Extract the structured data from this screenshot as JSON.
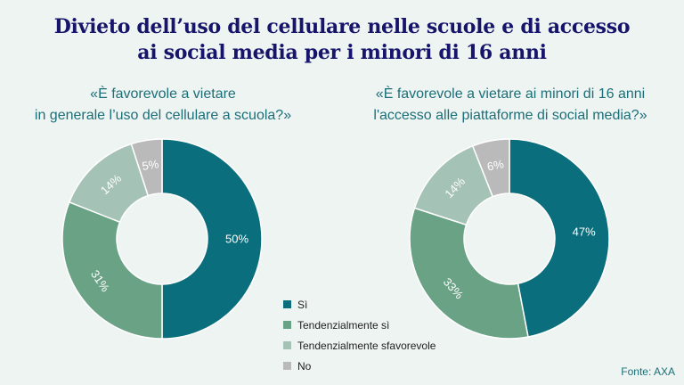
{
  "title": {
    "line1": "Divieto dell’uso del cellulare nelle scuole e di accesso",
    "line2": "ai social media per i minori di 16 anni"
  },
  "legend": [
    {
      "label": "Sì",
      "color": "#0b6e7c"
    },
    {
      "label": "Tendenzialmente sì",
      "color": "#6aa285"
    },
    {
      "label": "Tendenzialmente sfavorevole",
      "color": "#a5c2b6"
    },
    {
      "label": "No",
      "color": "#b9bab9"
    }
  ],
  "source": "Fonte: AXA",
  "chart_data": [
    {
      "type": "pie",
      "donut": true,
      "title_lines": [
        "«È favorevole a vietare",
        "in generale l’uso del cellulare a scuola?»"
      ],
      "categories": [
        "Sì",
        "Tendenzialmente sì",
        "Tendenzialmente sfavorevole",
        "No"
      ],
      "values": [
        50,
        31,
        14,
        5
      ],
      "labels": [
        "50%",
        "31%",
        "14%",
        "5%"
      ]
    },
    {
      "type": "pie",
      "donut": true,
      "title_lines": [
        "«È favorevole a vietare ai minori di 16 anni",
        "l'accesso alle piattaforme di social media?»"
      ],
      "categories": [
        "Sì",
        "Tendenzialmente sì",
        "Tendenzialmente sfavorevole",
        "No"
      ],
      "values": [
        47,
        33,
        14,
        6
      ],
      "labels": [
        "47%",
        "33%",
        "14%",
        "6%"
      ]
    }
  ]
}
